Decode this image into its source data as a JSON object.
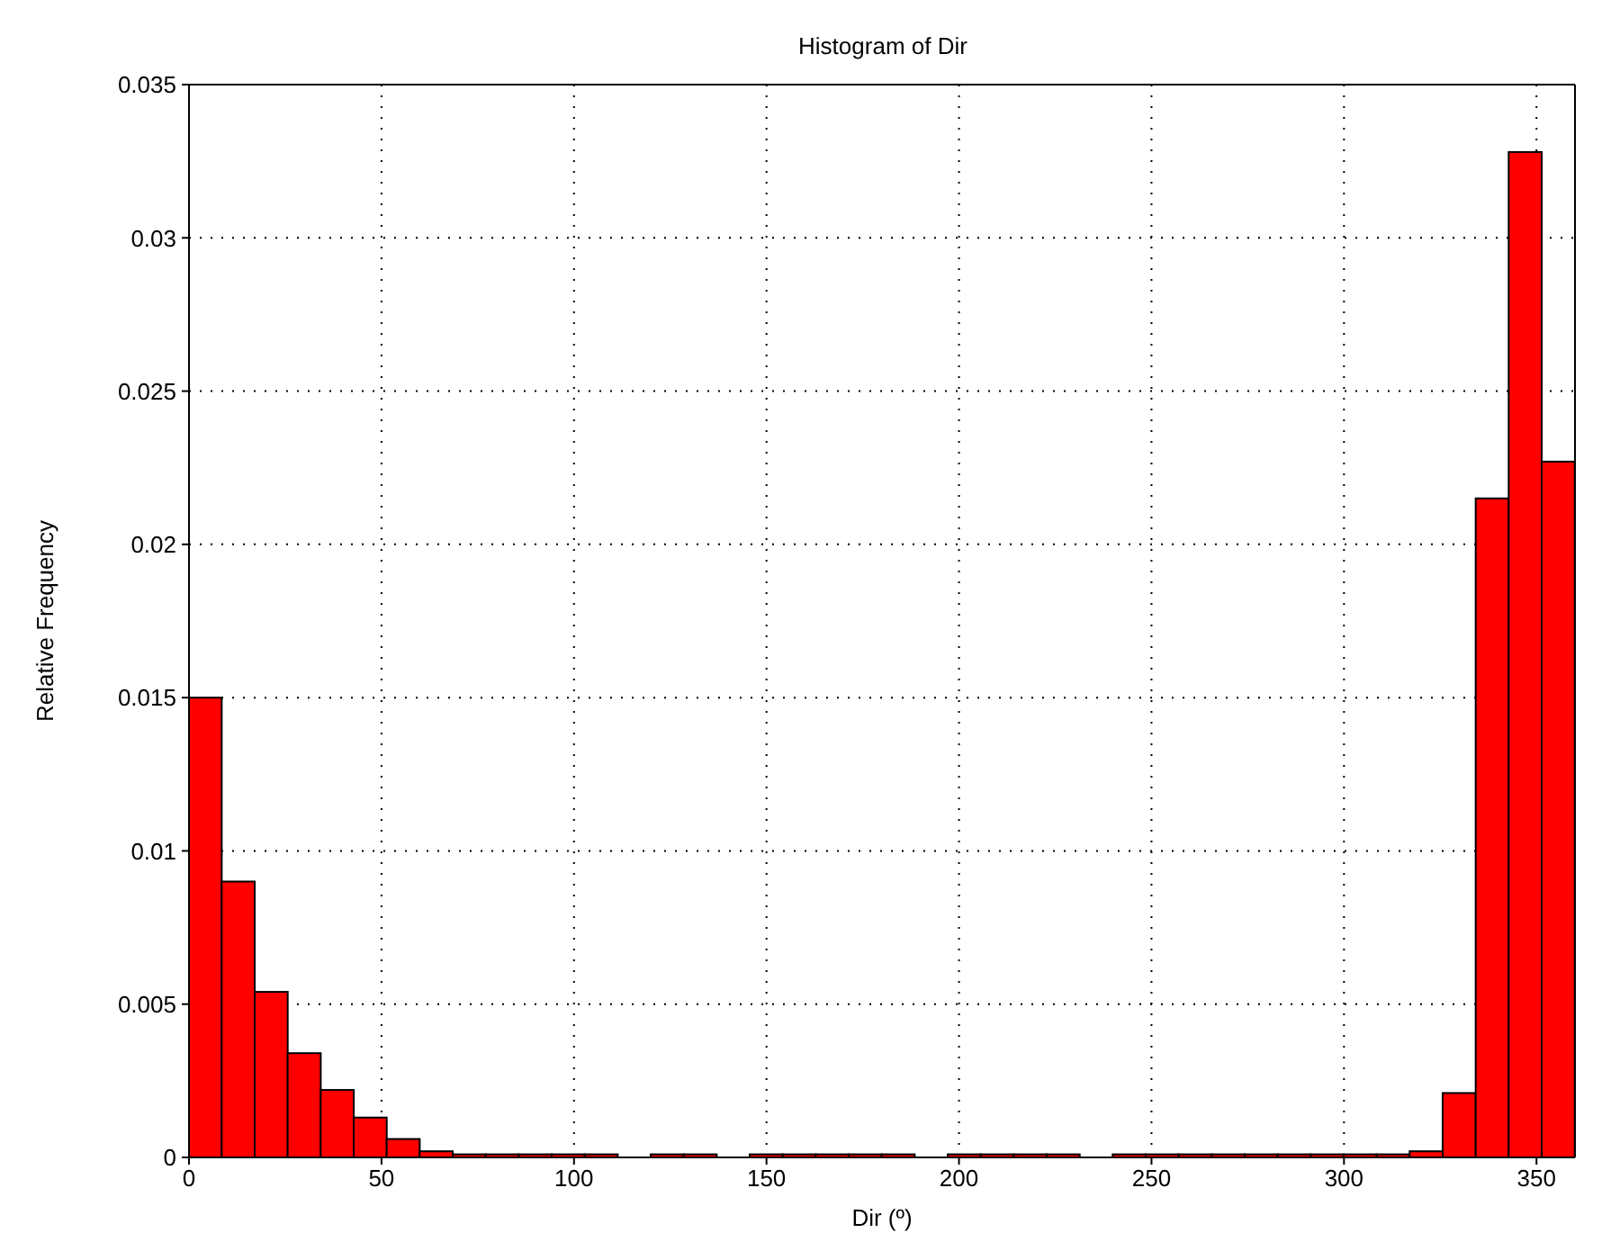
{
  "chart_data": {
    "type": "histogram",
    "title": "Histogram of Dir",
    "xlabel": "Dir (º)",
    "ylabel": "Relative Frequency",
    "bins": [
      0,
      8.57,
      17.14,
      25.71,
      34.29,
      42.86,
      51.43,
      60,
      68.57,
      77.14,
      85.71,
      94.29,
      102.86,
      111.43,
      120,
      128.57,
      137.14,
      145.71,
      154.29,
      162.86,
      171.43,
      180,
      188.57,
      197.14,
      205.71,
      214.29,
      222.86,
      231.43,
      240,
      248.57,
      257.14,
      265.71,
      274.29,
      282.86,
      291.43,
      300,
      308.57,
      317.14,
      325.71,
      334.29,
      342.86,
      351.43,
      360
    ],
    "values": [
      0.015,
      0.009,
      0.0054,
      0.0034,
      0.0022,
      0.0013,
      0.0006,
      0.0002,
      0.0001,
      0.0001,
      0.0001,
      0.0001,
      0.0001,
      0,
      0.0001,
      0.0001,
      0,
      0.0001,
      0.0001,
      0.0001,
      0.0001,
      0.0001,
      0,
      0.0001,
      0.0001,
      0.0001,
      0.0001,
      0,
      0.0001,
      0.0001,
      0.0001,
      0.0001,
      0.0001,
      0.0001,
      0.0001,
      0.0001,
      0.0001,
      0.0002,
      0.0021,
      0.0215,
      0.0328,
      0.0227
    ],
    "color": "#ff0000",
    "xlim": [
      0,
      360
    ],
    "xticks": [
      0,
      50,
      100,
      150,
      200,
      250,
      300,
      350
    ],
    "ylim": [
      0,
      0.035
    ],
    "yticks": [
      0,
      0.005,
      0.01,
      0.015,
      0.02,
      0.025,
      0.03,
      0.035
    ],
    "grid": true
  }
}
